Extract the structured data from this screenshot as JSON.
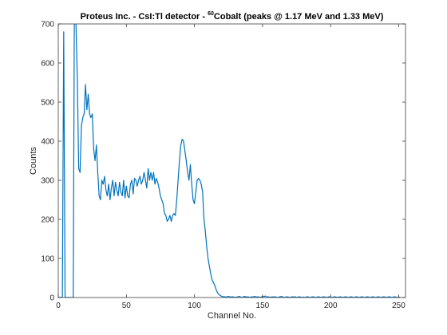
{
  "chart_data": {
    "type": "line",
    "title": {
      "prefix": "Proteus Inc. - CsI:Tl detector - ",
      "superscript": "60",
      "suffix": "Cobalt (peaks @ 1.17 MeV and 1.33 MeV)"
    },
    "xlabel": "Channel No.",
    "ylabel": "Counts",
    "xlim": [
      0,
      255
    ],
    "ylim": [
      0,
      700
    ],
    "xticks": [
      0,
      50,
      100,
      150,
      200,
      250
    ],
    "yticks": [
      0,
      100,
      200,
      300,
      400,
      500,
      600,
      700
    ],
    "grid": false,
    "box": true,
    "colors": {
      "line": "#0072bd",
      "axes": "#262626",
      "background": "#ffffff"
    },
    "series": [
      {
        "values": [
          0,
          0,
          0,
          0,
          680,
          0,
          0,
          0,
          0,
          0,
          0,
          0,
          900,
          700,
          560,
          330,
          320,
          440,
          460,
          470,
          545,
          480,
          520,
          470,
          460,
          470,
          380,
          350,
          390,
          320,
          260,
          250,
          300,
          290,
          310,
          275,
          260,
          290,
          250,
          280,
          300,
          260,
          295,
          275,
          260,
          295,
          270,
          260,
          300,
          255,
          285,
          260,
          255,
          290,
          300,
          265,
          305,
          300,
          285,
          300,
          310,
          290,
          300,
          320,
          300,
          280,
          330,
          300,
          320,
          300,
          320,
          290,
          305,
          295,
          280,
          260,
          250,
          240,
          215,
          210,
          195,
          200,
          210,
          195,
          210,
          215,
          210,
          250,
          300,
          350,
          390,
          405,
          400,
          375,
          350,
          320,
          300,
          340,
          290,
          250,
          240,
          270,
          300,
          305,
          300,
          290,
          270,
          200,
          170,
          130,
          100,
          80,
          60,
          45,
          38,
          30,
          20,
          12,
          8,
          5,
          3,
          2,
          2,
          1,
          2,
          3,
          2,
          1,
          2,
          1,
          0,
          1,
          2,
          3,
          1,
          0,
          2,
          3,
          1,
          2,
          1,
          0,
          2,
          1,
          3,
          2,
          1,
          2,
          0,
          1,
          3,
          2,
          4,
          1,
          2,
          1,
          0,
          2,
          1,
          2,
          1,
          0,
          1,
          2,
          3,
          1,
          0,
          1,
          2,
          1,
          0,
          1,
          2,
          1,
          2,
          0,
          1,
          2,
          1,
          0,
          1,
          0,
          1,
          2,
          1,
          0,
          1,
          2,
          1,
          0,
          1,
          2,
          1,
          0,
          1,
          2,
          1,
          0,
          1,
          2,
          1,
          0,
          1,
          2,
          1,
          0,
          1,
          2,
          1,
          0,
          1,
          2,
          1,
          0,
          1,
          2,
          1,
          0,
          1,
          2,
          1,
          0,
          1,
          2,
          1,
          0,
          1,
          2,
          1,
          0,
          1,
          2,
          1,
          0,
          1,
          2,
          1,
          0,
          1,
          2,
          1,
          0,
          1,
          2,
          1,
          0,
          1,
          2,
          1,
          0,
          1,
          0
        ]
      }
    ]
  }
}
